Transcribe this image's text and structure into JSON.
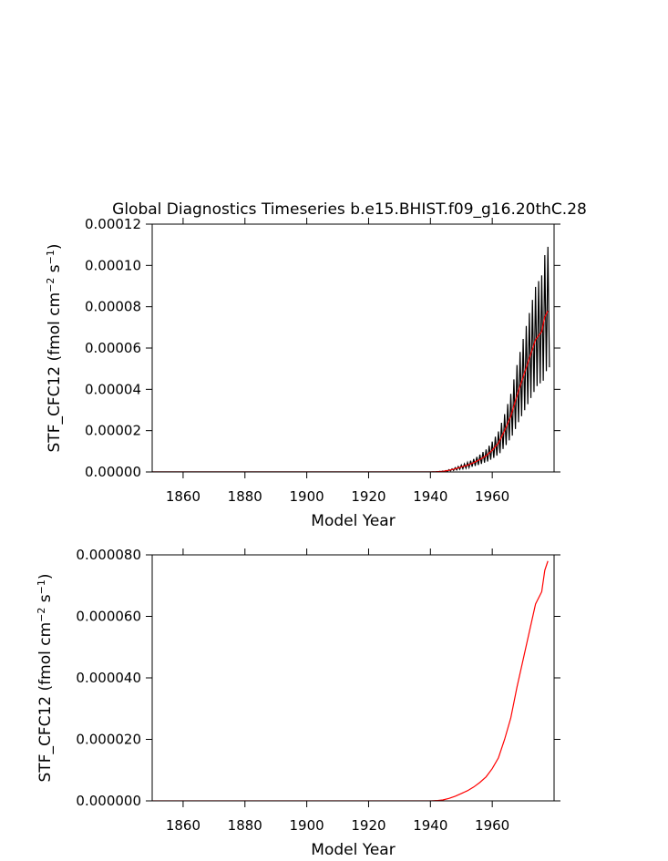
{
  "chart_data": [
    {
      "type": "line",
      "title": "Global Diagnostics Timeseries b.e15.BHIST.f09_g16.20thC.28",
      "xlabel": "Model Year",
      "ylabel": [
        "STF_CFC12 (fmol cm",
        "−2",
        " s",
        "−1",
        ")"
      ],
      "xlim": [
        1850,
        1980
      ],
      "xticks": [
        1860,
        1880,
        1900,
        1920,
        1940,
        1960
      ],
      "ylim": [
        0,
        0.00012
      ],
      "yticks": [
        {
          "value": 0,
          "label": "0.00000"
        },
        {
          "value": 2e-05,
          "label": "0.00002"
        },
        {
          "value": 4e-05,
          "label": "0.00004"
        },
        {
          "value": 6e-05,
          "label": "0.00006"
        },
        {
          "value": 8e-05,
          "label": "0.00008"
        },
        {
          "value": 0.0001,
          "label": "0.00010"
        },
        {
          "value": 0.00012,
          "label": "0.00012"
        }
      ],
      "series": [
        {
          "color": "#000000",
          "x": [
            1850,
            1940,
            1941,
            1941.5,
            1942,
            1942.5,
            1943,
            1943.5,
            1944,
            1944.5,
            1945,
            1945.5,
            1946,
            1946.5,
            1947,
            1947.5,
            1948,
            1948.5,
            1949,
            1949.5,
            1950,
            1950.5,
            1951,
            1951.5,
            1952,
            1952.5,
            1953,
            1953.5,
            1954,
            1954.5,
            1955,
            1955.5,
            1956,
            1956.5,
            1957,
            1957.5,
            1958,
            1958.5,
            1959,
            1959.5,
            1960,
            1960.5,
            1961,
            1961.5,
            1962,
            1962.5,
            1963,
            1963.5,
            1964,
            1964.5,
            1965,
            1965.5,
            1966,
            1966.5,
            1967,
            1967.5,
            1968,
            1968.5,
            1969,
            1969.5,
            1970,
            1970.5,
            1971,
            1971.5,
            1972,
            1972.5,
            1973,
            1973.5,
            1974,
            1974.5,
            1975,
            1975.5,
            1976,
            1976.5,
            1977,
            1977.5,
            1978,
            1978.5
          ],
          "values": [
            0,
            0,
            7e-08,
            3e-08,
            1.4e-07,
            7e-08,
            2.8e-07,
            1.3e-07,
            4.2e-07,
            2e-07,
            7e-07,
            3.3e-07,
            1.12e-06,
            5.2e-07,
            1.54e-06,
            7.2e-07,
            2.1e-06,
            9.8e-07,
            2.66e-06,
            1.24e-06,
            3.36e-06,
            1.56e-06,
            3.92e-06,
            1.82e-06,
            4.62e-06,
            2.15e-06,
            5.46e-06,
            2.54e-06,
            6.3e-06,
            2.93e-06,
            7.28e-06,
            3.38e-06,
            8.4e-06,
            3.9e-06,
            9.66e-06,
            4.49e-06,
            1.09e-05,
            5.07e-06,
            1.27e-05,
            5.92e-06,
            1.47e-05,
            6.83e-06,
            1.71e-05,
            7.93e-06,
            1.96e-05,
            9.1e-06,
            2.38e-05,
            1.11e-05,
            2.8e-05,
            1.3e-05,
            3.29e-05,
            1.53e-05,
            3.78e-05,
            1.76e-05,
            4.48e-05,
            2.08e-05,
            5.18e-05,
            2.41e-05,
            5.81e-05,
            2.7e-05,
            6.44e-05,
            2.99e-05,
            7.07e-05,
            3.28e-05,
            7.7e-05,
            3.58e-05,
            8.33e-05,
            3.87e-05,
            8.96e-05,
            4.16e-05,
            9.24e-05,
            4.29e-05,
            9.52e-05,
            4.42e-05,
            0.000105,
            4.88e-05,
            0.000109,
            5.07e-05
          ]
        },
        {
          "color": "#ff0000",
          "x": [
            1850,
            1940,
            1942,
            1944,
            1946,
            1948,
            1950,
            1952,
            1954,
            1956,
            1958,
            1960,
            1962,
            1964,
            1966,
            1968,
            1970,
            1972,
            1974,
            1976,
            1977,
            1978
          ],
          "values": [
            0,
            0,
            1e-07,
            3e-07,
            8e-07,
            1.5e-06,
            2.4e-06,
            3.3e-06,
            4.5e-06,
            6e-06,
            7.8e-06,
            1.05e-05,
            1.4e-05,
            2e-05,
            2.7e-05,
            3.7e-05,
            4.6e-05,
            5.5e-05,
            6.4e-05,
            6.8e-05,
            7.5e-05,
            7.8e-05
          ]
        }
      ]
    },
    {
      "type": "line",
      "xlabel": "Model Year",
      "ylabel": [
        "STF_CFC12 (fmol cm",
        "−2",
        " s",
        "−1",
        ")"
      ],
      "xlim": [
        1850,
        1980
      ],
      "xticks": [
        1860,
        1880,
        1900,
        1920,
        1940,
        1960
      ],
      "ylim": [
        0,
        8e-05
      ],
      "yticks": [
        {
          "value": 0,
          "label": "0.000000"
        },
        {
          "value": 2e-05,
          "label": "0.000020"
        },
        {
          "value": 4e-05,
          "label": "0.000040"
        },
        {
          "value": 6e-05,
          "label": "0.000060"
        },
        {
          "value": 8e-05,
          "label": "0.000080"
        }
      ],
      "series": [
        {
          "color": "#ff0000",
          "x": [
            1850,
            1940,
            1942,
            1944,
            1946,
            1948,
            1950,
            1952,
            1954,
            1956,
            1958,
            1960,
            1962,
            1964,
            1966,
            1968,
            1970,
            1972,
            1974,
            1976,
            1977,
            1978
          ],
          "values": [
            0,
            0,
            1e-07,
            3e-07,
            8e-07,
            1.5e-06,
            2.4e-06,
            3.3e-06,
            4.5e-06,
            6e-06,
            7.8e-06,
            1.05e-05,
            1.4e-05,
            2e-05,
            2.7e-05,
            3.7e-05,
            4.6e-05,
            5.5e-05,
            6.4e-05,
            6.8e-05,
            7.5e-05,
            7.8e-05
          ]
        }
      ]
    }
  ]
}
